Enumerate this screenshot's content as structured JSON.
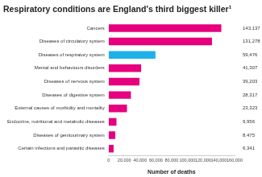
{
  "chart_data": {
    "type": "bar",
    "orientation": "horizontal",
    "title": "Respiratory conditions are England’s third biggest killer¹",
    "x_label": "Number of deaths",
    "categories": [
      "Cancers",
      "Diseases of circulatory system",
      "Diseases of respiratory system",
      "Mental and behaviours disorders",
      "Diseases of nervous system",
      "Diseases of digestive system",
      "External causes of morbidity and mortality",
      "Endocrine, nutritional and metabolic diseases",
      "Diseases of genitourinary system",
      "Certain infections and parasitic diseases"
    ],
    "values": [
      143137,
      131278,
      59476,
      41307,
      39203,
      28317,
      23323,
      9956,
      8475,
      6341
    ],
    "value_labels": [
      "143,137",
      "131,278",
      "59,476",
      "41,307",
      "39,203",
      "28,317",
      "23,323",
      "9,956",
      "8,475",
      "6,341"
    ],
    "data_labels": true,
    "colors": [
      "#e6007e",
      "#e6007e",
      "#1eb1e7",
      "#e6007e",
      "#e6007e",
      "#e6007e",
      "#e6007e",
      "#e6007e",
      "#e6007e",
      "#e6007e"
    ],
    "xlim": [
      0,
      160000
    ],
    "xticks": [
      0,
      {
        "value": 20000,
        "label": "20,000"
      },
      {
        "value": 40000,
        "label": "40,000"
      },
      {
        "value": 60000,
        "label": "60,000"
      },
      {
        "value": 80000,
        "label": "80,000"
      },
      {
        "value": 100000,
        "label": "100,000"
      },
      {
        "value": 120000,
        "label": "120,000"
      },
      {
        "value": 140000,
        "label": "140,000"
      },
      {
        "value": 160000,
        "label": "160,000"
      }
    ],
    "grid": false
  }
}
